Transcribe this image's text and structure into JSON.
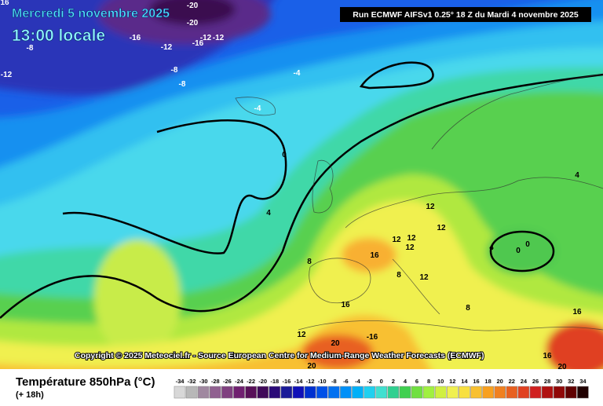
{
  "header": {
    "date": "Mercredi 5 novembre 2025",
    "time": "13:00 locale",
    "run": "Run ECMWF AIFSv1 0.25° 18 Z du Mardi 4 novembre 2025"
  },
  "map": {
    "copyright": "Copyright © 2025 Meteociel.fr - Source European Centre for Medium-Range Weather Forecasts (ECMWF)",
    "contour_labels": [
      "16",
      "-20",
      "-20",
      "-16",
      "-12",
      "-16",
      "-12",
      "-12",
      "-8",
      "-12",
      "-8",
      "-8",
      "-4",
      "-4",
      "0",
      "4",
      "4",
      "8",
      "12",
      "12",
      "12",
      "12",
      "12",
      "16",
      "8",
      "12",
      "4",
      "0",
      "0",
      "16",
      "8",
      "12",
      "20",
      "-16",
      "16",
      "16",
      "20",
      "20"
    ]
  },
  "legend": {
    "title": "Température 850hPa (°C)",
    "subtitle": "(+ 18h)",
    "values": [
      -34,
      -32,
      -30,
      -28,
      -26,
      -24,
      -22,
      -20,
      -18,
      -16,
      -14,
      -12,
      -10,
      -8,
      -6,
      -4,
      -2,
      0,
      2,
      4,
      6,
      8,
      10,
      12,
      14,
      16,
      18,
      20,
      22,
      24,
      26,
      28,
      30,
      32,
      34
    ],
    "colors": [
      "#d8d8d8",
      "#b8b8b8",
      "#a088a0",
      "#906090",
      "#804080",
      "#702070",
      "#581058",
      "#400a58",
      "#2a0a78",
      "#1a1a98",
      "#1010b8",
      "#0030d0",
      "#0050e8",
      "#0070f0",
      "#0090f8",
      "#00b0f8",
      "#20d0f0",
      "#40e0d0",
      "#30d090",
      "#40d050",
      "#70e040",
      "#a0f040",
      "#d0f040",
      "#f0f050",
      "#f8e040",
      "#f8c030",
      "#f8a020",
      "#f08020",
      "#e86020",
      "#e04020",
      "#d02020",
      "#b01010",
      "#900808",
      "#600000",
      "#200000"
    ]
  }
}
